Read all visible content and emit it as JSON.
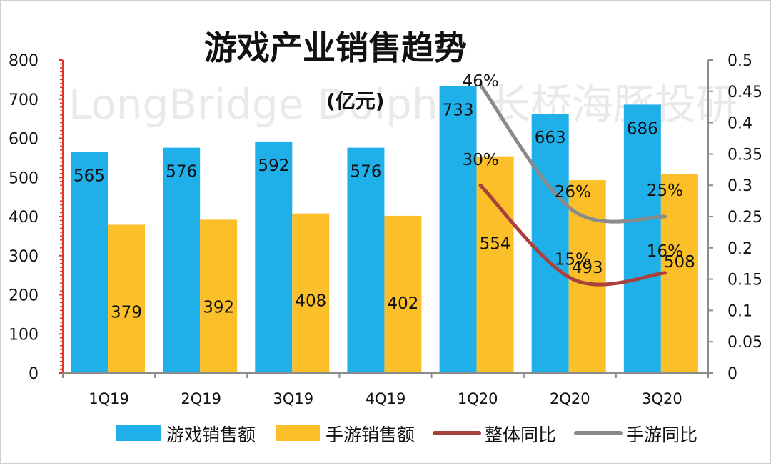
{
  "chart_data": {
    "type": "bar+line",
    "title": "游戏产业销售趋势",
    "subtitle": "(亿元)",
    "watermark": "LongBridge Dolphin 长桥海豚投研",
    "categories": [
      "1Q19",
      "2Q19",
      "3Q19",
      "4Q19",
      "1Q20",
      "2Q20",
      "3Q20"
    ],
    "series": [
      {
        "name": "游戏销售额",
        "type": "bar",
        "axis": "left",
        "color": "#1fb0ea",
        "values": [
          565,
          576,
          592,
          576,
          733,
          663,
          686
        ],
        "labels": [
          "565",
          "576",
          "592",
          "576",
          "733",
          "663",
          "686"
        ]
      },
      {
        "name": "手游销售额",
        "type": "bar",
        "axis": "left",
        "color": "#fbbf2a",
        "values": [
          379,
          392,
          408,
          402,
          554,
          493,
          508
        ],
        "labels": [
          "379",
          "392",
          "408",
          "402",
          "554",
          "493",
          "508"
        ]
      },
      {
        "name": "整体同比",
        "type": "line",
        "axis": "right",
        "color": "#a8413b",
        "values": [
          null,
          null,
          null,
          null,
          0.3,
          0.15,
          0.16
        ],
        "labels": [
          null,
          null,
          null,
          null,
          "30%",
          "15%",
          "16%"
        ]
      },
      {
        "name": "手游同比",
        "type": "line",
        "axis": "right",
        "color": "#8a8a8a",
        "values": [
          null,
          null,
          null,
          null,
          0.46,
          0.26,
          0.25
        ],
        "labels": [
          null,
          null,
          null,
          null,
          "46%",
          "26%",
          "25%"
        ]
      }
    ],
    "y_left": {
      "min": 0,
      "max": 800,
      "ticks": [
        "0",
        "100",
        "200",
        "300",
        "400",
        "500",
        "600",
        "700",
        "800"
      ]
    },
    "y_right": {
      "min": 0,
      "max": 0.5,
      "ticks": [
        "0",
        "0.05",
        "0.1",
        "0.15",
        "0.2",
        "0.25",
        "0.3",
        "0.35",
        "0.4",
        "0.45",
        "0.5"
      ]
    },
    "grid": false,
    "legend_position": "bottom"
  }
}
